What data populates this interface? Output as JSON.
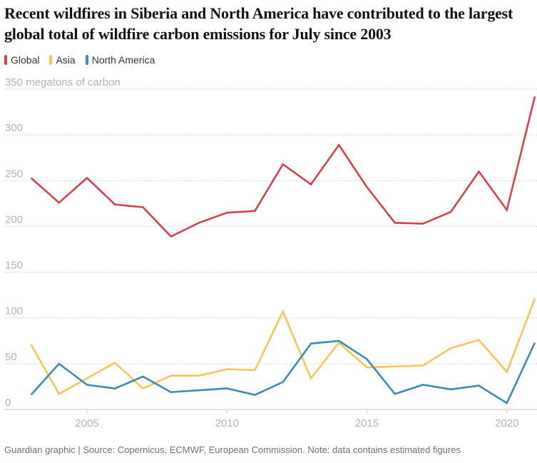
{
  "title": "Recent wildfires in Siberia and North America have contributed to the largest global total of wildfire carbon emissions for July since 2003",
  "footer": "Guardian graphic | Source: Copernicus, ECMWF, European Commission. Note: data contains estimated figures",
  "chart_data": {
    "type": "line",
    "title": "Recent wildfires in Siberia and North America have contributed to the largest global total of wildfire carbon emissions for July since 2003",
    "ylabel": "megatons of carbon",
    "ylim": [
      0,
      350
    ],
    "yticks": [
      0,
      50,
      100,
      150,
      200,
      250,
      300,
      350
    ],
    "ytick_labels": [
      "0",
      "50",
      "100",
      "150",
      "200",
      "250",
      "300",
      "350 megatons of carbon"
    ],
    "xlim": [
      2003,
      2021
    ],
    "xticks": [
      2005,
      2010,
      2015,
      2020
    ],
    "xtick_labels": [
      "2005",
      "2010",
      "2015",
      "2020"
    ],
    "grid": true,
    "legend_placement": "top-left",
    "x": [
      2003,
      2004,
      2005,
      2006,
      2007,
      2008,
      2009,
      2010,
      2011,
      2012,
      2013,
      2014,
      2015,
      2016,
      2017,
      2018,
      2019,
      2020,
      2021
    ],
    "series": [
      {
        "name": "Global",
        "color": "#d6414a",
        "values": [
          253,
          226,
          253,
          224,
          221,
          189,
          204,
          215,
          217,
          268,
          246,
          289,
          243,
          204,
          203,
          216,
          260,
          218,
          342
        ]
      },
      {
        "name": "Asia",
        "color": "#f6c758",
        "values": [
          71,
          17,
          34,
          51,
          23,
          37,
          37,
          44,
          43,
          107,
          34,
          73,
          46,
          47,
          48,
          67,
          76,
          41,
          121
        ]
      },
      {
        "name": "North America",
        "color": "#3c8cb4",
        "values": [
          16,
          50,
          27,
          23,
          36,
          19,
          21,
          23,
          16,
          30,
          72,
          75,
          55,
          17,
          27,
          22,
          26,
          7,
          73
        ]
      }
    ]
  }
}
